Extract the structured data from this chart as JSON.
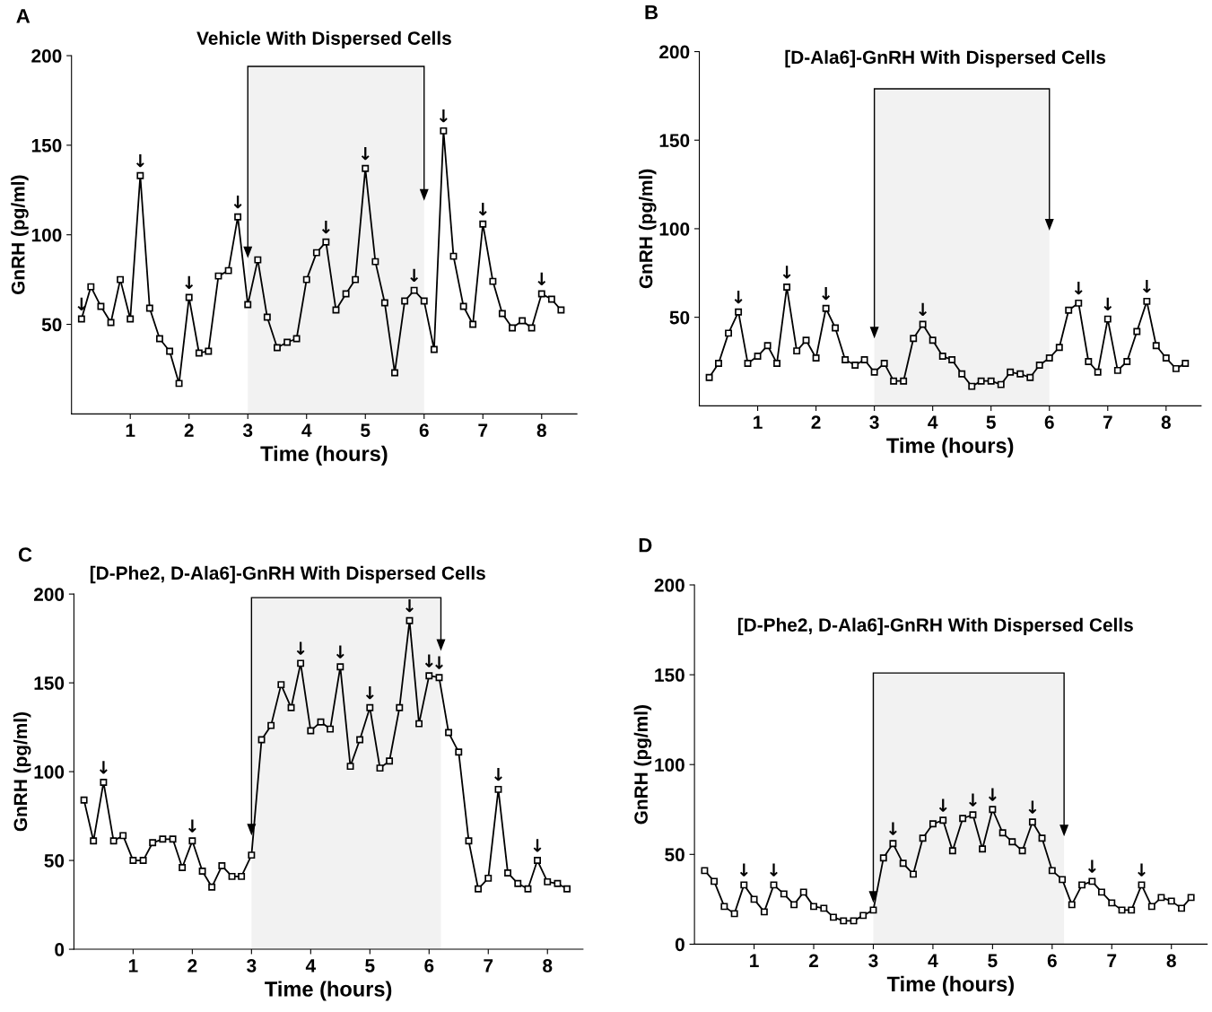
{
  "chart_data": [
    {
      "type": "line",
      "title": "Vehicle With Dispersed Cells",
      "xlabel": "Time (hours)",
      "ylabel": "GnRH (pg/ml)",
      "marker": "square",
      "color": "#000000",
      "x": [
        0.17,
        0.33,
        0.5,
        0.67,
        0.83,
        1,
        1.17,
        1.33,
        1.5,
        1.67,
        1.83,
        2,
        2.17,
        2.33,
        2.5,
        2.67,
        2.83,
        3,
        3.17,
        3.33,
        3.5,
        3.67,
        3.83,
        4,
        4.17,
        4.33,
        4.5,
        4.67,
        4.83,
        5,
        5.17,
        5.33,
        5.5,
        5.67,
        5.83,
        6,
        6.17,
        6.33,
        6.5,
        6.67,
        6.83,
        7,
        7.17,
        7.33,
        7.5,
        7.67,
        7.83,
        8,
        8.17,
        8.33
      ],
      "values": [
        53,
        71,
        60,
        51,
        75,
        53,
        133,
        59,
        42,
        35,
        17,
        65,
        34,
        35,
        77,
        80,
        110,
        61,
        86,
        54,
        37,
        40,
        42,
        75,
        90,
        96,
        58,
        67,
        75,
        137,
        85,
        62,
        23,
        63,
        69,
        63,
        36,
        158,
        88,
        60,
        50,
        106,
        74,
        56,
        48,
        52,
        48,
        67,
        64,
        58
      ],
      "xlim": [
        0,
        8.6
      ],
      "ylim": [
        0,
        200
      ],
      "xticks": [
        1,
        2,
        3,
        4,
        5,
        6,
        7,
        8
      ],
      "yticks": [
        50,
        100,
        150,
        200
      ],
      "bands": [
        {
          "axis": "x",
          "from": 3,
          "to": 6,
          "color": "#f2f2f2"
        }
      ],
      "annotations": [
        "A",
        {
          "text": "↓",
          "x": 0.17,
          "y": 53
        },
        {
          "text": "↓",
          "x": 1.17,
          "y": 133
        },
        {
          "text": "↓",
          "x": 2,
          "y": 65
        },
        {
          "text": "↓",
          "x": 2.83,
          "y": 110
        },
        {
          "text": "↓",
          "x": 4.33,
          "y": 96
        },
        {
          "text": "↓",
          "x": 5,
          "y": 137
        },
        {
          "text": "↓",
          "x": 5.83,
          "y": 69
        },
        {
          "text": "↓",
          "x": 6.33,
          "y": 158
        },
        {
          "text": "↓",
          "x": 7,
          "y": 106
        },
        {
          "text": "↓",
          "x": 8,
          "y": 67
        }
      ]
    },
    {
      "type": "line",
      "title": "[D-Ala6]-GnRH With Dispersed Cells",
      "xlabel": "Time (hours)",
      "ylabel": "GnRH (pg/ml)",
      "marker": "square",
      "color": "#000000",
      "x": [
        0.17,
        0.33,
        0.5,
        0.67,
        0.83,
        1,
        1.17,
        1.33,
        1.5,
        1.67,
        1.83,
        2,
        2.17,
        2.33,
        2.5,
        2.67,
        2.83,
        3,
        3.17,
        3.33,
        3.5,
        3.67,
        3.83,
        4,
        4.17,
        4.33,
        4.5,
        4.67,
        4.83,
        5,
        5.17,
        5.33,
        5.5,
        5.67,
        5.83,
        6,
        6.17,
        6.33,
        6.5,
        6.67,
        6.83,
        7,
        7.17,
        7.33,
        7.5,
        7.67,
        7.83,
        8,
        8.17,
        8.33
      ],
      "values": [
        16,
        24,
        41,
        53,
        24,
        28,
        34,
        24,
        67,
        31,
        37,
        27,
        55,
        44,
        26,
        23,
        26,
        19,
        24,
        14,
        14,
        38,
        46,
        37,
        28,
        26,
        18,
        11,
        14,
        14,
        12,
        19,
        18,
        16,
        23,
        27,
        33,
        54,
        58,
        25,
        19,
        49,
        20,
        25,
        42,
        59,
        34,
        27,
        21,
        24
      ],
      "xlim": [
        0,
        8.6
      ],
      "ylim": [
        0,
        200
      ],
      "xticks": [
        1,
        2,
        3,
        4,
        5,
        6,
        7,
        8
      ],
      "yticks": [
        50,
        100,
        150,
        200
      ],
      "bands": [
        {
          "axis": "x",
          "from": 3,
          "to": 6,
          "color": "#f2f2f2"
        }
      ],
      "annotations": [
        "B",
        {
          "text": "↓",
          "x": 0.67,
          "y": 53
        },
        {
          "text": "↓",
          "x": 1.5,
          "y": 67
        },
        {
          "text": "↓",
          "x": 2.17,
          "y": 55
        },
        {
          "text": "↓",
          "x": 3.83,
          "y": 46
        },
        {
          "text": "↓",
          "x": 6.5,
          "y": 58
        },
        {
          "text": "↓",
          "x": 7,
          "y": 49
        },
        {
          "text": "↓",
          "x": 7.67,
          "y": 59
        }
      ]
    },
    {
      "type": "line",
      "title": "[D-Phe2, D-Ala6]-GnRH With Dispersed Cells",
      "xlabel": "Time (hours)",
      "ylabel": "GnRH (pg/ml)",
      "marker": "square",
      "color": "#000000",
      "x": [
        0.17,
        0.33,
        0.5,
        0.67,
        0.83,
        1,
        1.17,
        1.33,
        1.5,
        1.67,
        1.83,
        2,
        2.17,
        2.33,
        2.5,
        2.67,
        2.83,
        3,
        3.17,
        3.33,
        3.5,
        3.67,
        3.83,
        4,
        4.17,
        4.33,
        4.5,
        4.67,
        4.83,
        5,
        5.17,
        5.33,
        5.5,
        5.67,
        5.83,
        6,
        6.17,
        6.33,
        6.5,
        6.67,
        6.83,
        7,
        7.17,
        7.33,
        7.5,
        7.67,
        7.83,
        8,
        8.17,
        8.33
      ],
      "values": [
        84,
        61,
        94,
        61,
        64,
        50,
        50,
        60,
        62,
        62,
        46,
        61,
        44,
        35,
        47,
        41,
        41,
        53,
        118,
        126,
        149,
        136,
        161,
        123,
        128,
        124,
        159,
        103,
        118,
        136,
        102,
        106,
        136,
        185,
        127,
        154,
        153,
        122,
        111,
        61,
        34,
        40,
        90,
        43,
        37,
        34,
        50,
        38,
        37,
        34
      ],
      "xlim": [
        0,
        8.6
      ],
      "ylim": [
        0,
        200
      ],
      "xticks": [
        1,
        2,
        3,
        4,
        5,
        6,
        7,
        8
      ],
      "yticks": [
        0,
        50,
        100,
        150,
        200
      ],
      "bands": [
        {
          "axis": "x",
          "from": 3,
          "to": 6.2,
          "color": "#f2f2f2"
        }
      ],
      "annotations": [
        "C",
        {
          "text": "↓",
          "x": 0.5,
          "y": 94
        },
        {
          "text": "↓",
          "x": 2,
          "y": 61
        },
        {
          "text": "↓",
          "x": 3.83,
          "y": 161
        },
        {
          "text": "↓",
          "x": 4.5,
          "y": 159
        },
        {
          "text": "↓",
          "x": 5,
          "y": 136
        },
        {
          "text": "↓",
          "x": 5.67,
          "y": 185
        },
        {
          "text": "↓",
          "x": 6,
          "y": 154
        },
        {
          "text": "↓",
          "x": 6.17,
          "y": 153
        },
        {
          "text": "↓",
          "x": 7.17,
          "y": 90
        },
        {
          "text": "↓",
          "x": 7.83,
          "y": 50
        }
      ]
    },
    {
      "type": "line",
      "title": "[D-Phe2, D-Ala6]-GnRH With Dispersed Cells",
      "xlabel": "Time (hours)",
      "ylabel": "GnRH (pg/ml)",
      "marker": "square",
      "color": "#000000",
      "x": [
        0.17,
        0.33,
        0.5,
        0.67,
        0.83,
        1,
        1.17,
        1.33,
        1.5,
        1.67,
        1.83,
        2,
        2.17,
        2.33,
        2.5,
        2.67,
        2.83,
        3,
        3.17,
        3.33,
        3.5,
        3.67,
        3.83,
        4,
        4.17,
        4.33,
        4.5,
        4.67,
        4.83,
        5,
        5.17,
        5.33,
        5.5,
        5.67,
        5.83,
        6,
        6.17,
        6.33,
        6.5,
        6.67,
        6.83,
        7,
        7.17,
        7.33,
        7.5,
        7.67,
        7.83,
        8,
        8.17,
        8.33
      ],
      "values": [
        41,
        35,
        21,
        17,
        33,
        25,
        18,
        33,
        28,
        22,
        29,
        21,
        20,
        15,
        13,
        13,
        16,
        19,
        48,
        56,
        45,
        39,
        59,
        67,
        69,
        52,
        70,
        72,
        53,
        75,
        62,
        57,
        52,
        68,
        59,
        41,
        36,
        22,
        33,
        35,
        29,
        23,
        19,
        19,
        33,
        21,
        26,
        24,
        20,
        26
      ],
      "xlim": [
        0,
        8.6
      ],
      "ylim": [
        0,
        200
      ],
      "xticks": [
        1,
        2,
        3,
        4,
        5,
        6,
        7,
        8
      ],
      "yticks": [
        0,
        50,
        100,
        150,
        200
      ],
      "bands": [
        {
          "axis": "x",
          "from": 3,
          "to": 6.2,
          "color": "#f2f2f2"
        }
      ],
      "annotations": [
        "D",
        {
          "text": "↓",
          "x": 0.83,
          "y": 33
        },
        {
          "text": "↓",
          "x": 1.33,
          "y": 33
        },
        {
          "text": "↓",
          "x": 3.33,
          "y": 56
        },
        {
          "text": "↓",
          "x": 4.17,
          "y": 69
        },
        {
          "text": "↓",
          "x": 4.67,
          "y": 72
        },
        {
          "text": "↓",
          "x": 5,
          "y": 75
        },
        {
          "text": "↓",
          "x": 5.67,
          "y": 68
        },
        {
          "text": "↓",
          "x": 6.67,
          "y": 35
        },
        {
          "text": "↓",
          "x": 7.5,
          "y": 33
        }
      ]
    }
  ]
}
